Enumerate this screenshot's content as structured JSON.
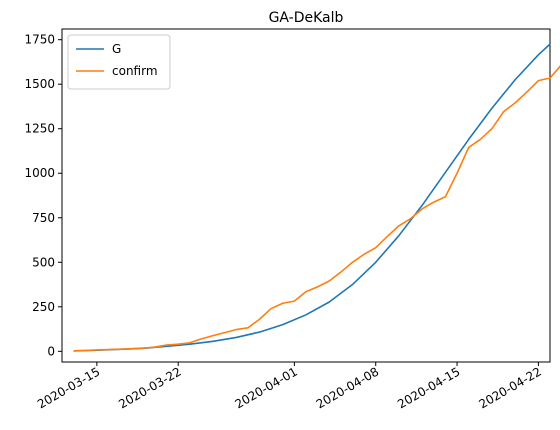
{
  "chart_data": {
    "type": "line",
    "title": "GA-DeKalb",
    "xlabel": "",
    "ylabel": "",
    "x_axis": {
      "type": "date",
      "range": [
        "2020-03-12",
        "2020-04-23"
      ],
      "ticks": [
        "2020-03-15",
        "2020-03-22",
        "2020-04-01",
        "2020-04-08",
        "2020-04-15",
        "2020-04-22"
      ]
    },
    "y_axis": {
      "range": [
        -60,
        1810
      ],
      "ticks": [
        0,
        250,
        500,
        750,
        1000,
        1250,
        1500,
        1750
      ]
    },
    "grid": false,
    "legend_position": "top-left",
    "series": [
      {
        "name": "G",
        "color": "#1f77b4",
        "points": [
          [
            "2020-03-13",
            2
          ],
          [
            "2020-03-15",
            6
          ],
          [
            "2020-03-17",
            11
          ],
          [
            "2020-03-19",
            17
          ],
          [
            "2020-03-21",
            28
          ],
          [
            "2020-03-23",
            40
          ],
          [
            "2020-03-25",
            56
          ],
          [
            "2020-03-27",
            78
          ],
          [
            "2020-03-29",
            108
          ],
          [
            "2020-03-31",
            150
          ],
          [
            "2020-04-02",
            205
          ],
          [
            "2020-04-04",
            277
          ],
          [
            "2020-04-06",
            375
          ],
          [
            "2020-04-08",
            500
          ],
          [
            "2020-04-10",
            650
          ],
          [
            "2020-04-12",
            820
          ],
          [
            "2020-04-14",
            1005
          ],
          [
            "2020-04-16",
            1190
          ],
          [
            "2020-04-18",
            1365
          ],
          [
            "2020-04-20",
            1525
          ],
          [
            "2020-04-22",
            1665
          ],
          [
            "2020-04-23",
            1725
          ]
        ]
      },
      {
        "name": "confirm",
        "color": "#ff7f0e",
        "points": [
          [
            "2020-03-13",
            3
          ],
          [
            "2020-03-14",
            5
          ],
          [
            "2020-03-15",
            8
          ],
          [
            "2020-03-16",
            10
          ],
          [
            "2020-03-17",
            12
          ],
          [
            "2020-03-18",
            15
          ],
          [
            "2020-03-19",
            18
          ],
          [
            "2020-03-20",
            24
          ],
          [
            "2020-03-21",
            35
          ],
          [
            "2020-03-22",
            40
          ],
          [
            "2020-03-23",
            48
          ],
          [
            "2020-03-24",
            70
          ],
          [
            "2020-03-25",
            88
          ],
          [
            "2020-03-26",
            105
          ],
          [
            "2020-03-27",
            122
          ],
          [
            "2020-03-28",
            132
          ],
          [
            "2020-03-29",
            180
          ],
          [
            "2020-03-30",
            240
          ],
          [
            "2020-03-31",
            270
          ],
          [
            "2020-04-01",
            282
          ],
          [
            "2020-04-02",
            335
          ],
          [
            "2020-04-03",
            362
          ],
          [
            "2020-04-04",
            395
          ],
          [
            "2020-04-05",
            445
          ],
          [
            "2020-04-06",
            500
          ],
          [
            "2020-04-07",
            545
          ],
          [
            "2020-04-08",
            582
          ],
          [
            "2020-04-09",
            645
          ],
          [
            "2020-04-10",
            705
          ],
          [
            "2020-04-11",
            745
          ],
          [
            "2020-04-12",
            800
          ],
          [
            "2020-04-13",
            838
          ],
          [
            "2020-04-14",
            868
          ],
          [
            "2020-04-15",
            1000
          ],
          [
            "2020-04-16",
            1145
          ],
          [
            "2020-04-17",
            1190
          ],
          [
            "2020-04-18",
            1250
          ],
          [
            "2020-04-19",
            1345
          ],
          [
            "2020-04-20",
            1395
          ],
          [
            "2020-04-21",
            1455
          ],
          [
            "2020-04-22",
            1520
          ],
          [
            "2020-04-23",
            1535
          ],
          [
            "2020-04-24",
            1610
          ]
        ]
      }
    ]
  }
}
